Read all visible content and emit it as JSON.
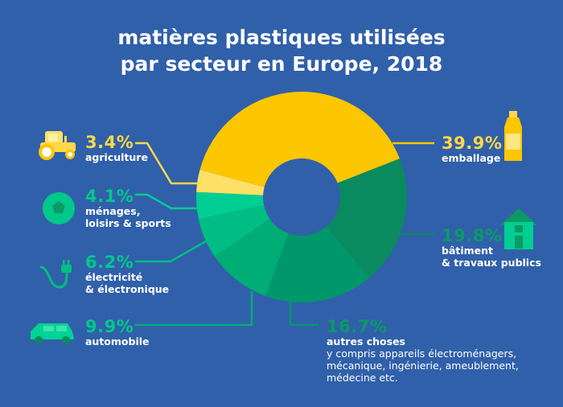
{
  "title_line1": "matières plastiques utilisées",
  "title_line2": "par secteur en Europe, 2018",
  "colors": {
    "background": "#3060AA",
    "yellow_label": "#FFD84A",
    "green_label": "#00C88A",
    "dark_green_label": "#0A9A66"
  },
  "chart_data": {
    "type": "pie",
    "donut": true,
    "title": "matières plastiques utilisées par secteur en Europe, 2018",
    "unit": "%",
    "slices": [
      {
        "label": "emballage",
        "value": 39.9,
        "display": "39.9%",
        "color": "#FCC600",
        "icon": "plastic-bottle-icon"
      },
      {
        "label": "bâtiment & travaux publics",
        "value": 19.8,
        "display": "19.8%",
        "color": "#0A8A5F",
        "icon": "house-icon"
      },
      {
        "label": "autres choses",
        "value": 16.7,
        "display": "16.7%",
        "color": "#00976A",
        "description": [
          "y compris appareils électroménagers,",
          "mécanique, ingénierie, ameublement,",
          "médecine etc."
        ]
      },
      {
        "label": "automobile",
        "value": 9.9,
        "display": "9.9%",
        "color": "#00AD75",
        "icon": "car-icon"
      },
      {
        "label": "électricité & électronique",
        "value": 6.2,
        "display": "6.2%",
        "color": "#00BE83",
        "icon": "plug-icon"
      },
      {
        "label": "ménages, loisirs & sports",
        "value": 4.1,
        "display": "4.1%",
        "color": "#00CE92",
        "icon": "soccer-ball-icon"
      },
      {
        "label": "agriculture",
        "value": 3.4,
        "display": "3.4%",
        "color": "#FFE066",
        "icon": "tractor-icon"
      }
    ]
  },
  "labels": {
    "emballage": {
      "pct": "39.9%",
      "name": "emballage"
    },
    "batiment": {
      "pct": "19.8%",
      "name1": "bâtiment",
      "name2": "& travaux publics"
    },
    "autres": {
      "pct": "16.7%",
      "name": "autres choses",
      "d1": "y compris appareils électroménagers,",
      "d2": "mécanique, ingénierie, ameublement,",
      "d3": "médecine etc."
    },
    "automobile": {
      "pct": "9.9%",
      "name": "automobile"
    },
    "electricite": {
      "pct": "6.2%",
      "name1": "électricité",
      "name2": "& électronique"
    },
    "menages": {
      "pct": "4.1%",
      "name1": "ménages,",
      "name2": "loisirs & sports"
    },
    "agriculture": {
      "pct": "3.4%",
      "name": "agriculture"
    }
  }
}
